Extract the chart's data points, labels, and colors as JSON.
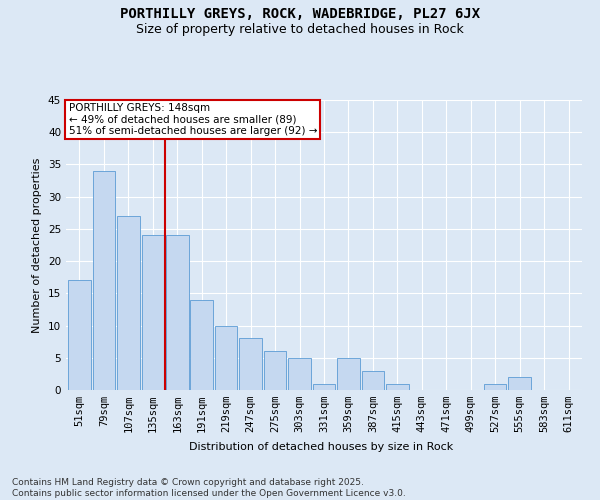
{
  "title": "PORTHILLY GREYS, ROCK, WADEBRIDGE, PL27 6JX",
  "subtitle": "Size of property relative to detached houses in Rock",
  "xlabel": "Distribution of detached houses by size in Rock",
  "ylabel": "Number of detached properties",
  "categories": [
    "51sqm",
    "79sqm",
    "107sqm",
    "135sqm",
    "163sqm",
    "191sqm",
    "219sqm",
    "247sqm",
    "275sqm",
    "303sqm",
    "331sqm",
    "359sqm",
    "387sqm",
    "415sqm",
    "443sqm",
    "471sqm",
    "499sqm",
    "527sqm",
    "555sqm",
    "583sqm",
    "611sqm"
  ],
  "values": [
    17,
    34,
    27,
    24,
    24,
    14,
    10,
    8,
    6,
    5,
    1,
    5,
    3,
    1,
    0,
    0,
    0,
    1,
    2,
    0,
    0
  ],
  "bar_color": "#c5d8f0",
  "bar_edge_color": "#5b9bd5",
  "background_color": "#dce8f5",
  "grid_color": "#ffffff",
  "red_line_x": 3.5,
  "annotation_text_line1": "PORTHILLY GREYS: 148sqm",
  "annotation_text_line2": "← 49% of detached houses are smaller (89)",
  "annotation_text_line3": "51% of semi-detached houses are larger (92) →",
  "annotation_box_color": "#ffffff",
  "annotation_box_edge": "#cc0000",
  "red_line_color": "#cc0000",
  "ylim": [
    0,
    45
  ],
  "yticks": [
    0,
    5,
    10,
    15,
    20,
    25,
    30,
    35,
    40,
    45
  ],
  "footer": "Contains HM Land Registry data © Crown copyright and database right 2025.\nContains public sector information licensed under the Open Government Licence v3.0.",
  "title_fontsize": 10,
  "subtitle_fontsize": 9,
  "axis_label_fontsize": 8,
  "tick_fontsize": 7.5,
  "annotation_fontsize": 7.5,
  "footer_fontsize": 6.5
}
